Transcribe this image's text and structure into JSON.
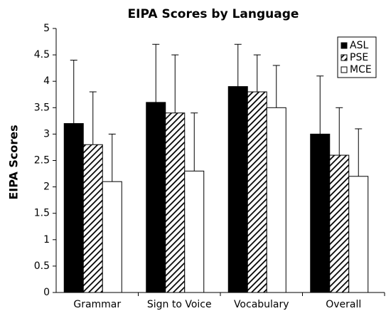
{
  "chart_data": {
    "type": "bar",
    "title": "EIPA Scores by Language",
    "y_label": "EIPA Scores",
    "categories": [
      "Grammar",
      "Sign to Voice",
      "Vocabulary",
      "Overall"
    ],
    "series": [
      {
        "name": "ASL",
        "color": "#000000",
        "values": [
          3.2,
          3.6,
          3.9,
          3.0
        ],
        "errors": [
          1.2,
          1.1,
          0.8,
          1.1
        ]
      },
      {
        "name": "PSE",
        "color": "#000000",
        "pattern": "hatch",
        "values": [
          2.8,
          3.4,
          3.8,
          2.6
        ],
        "errors": [
          1.0,
          1.1,
          0.7,
          0.9
        ]
      },
      {
        "name": "MCE",
        "color": "#ffffff",
        "values": [
          2.1,
          2.3,
          3.5,
          2.2
        ],
        "errors": [
          0.9,
          1.1,
          0.8,
          0.9
        ]
      }
    ],
    "ylim": [
      0,
      5
    ],
    "yticks": [
      0,
      0.5,
      1,
      1.5,
      2,
      2.5,
      3,
      3.5,
      4,
      4.5,
      5
    ],
    "grid": false,
    "legend": "upper right"
  }
}
